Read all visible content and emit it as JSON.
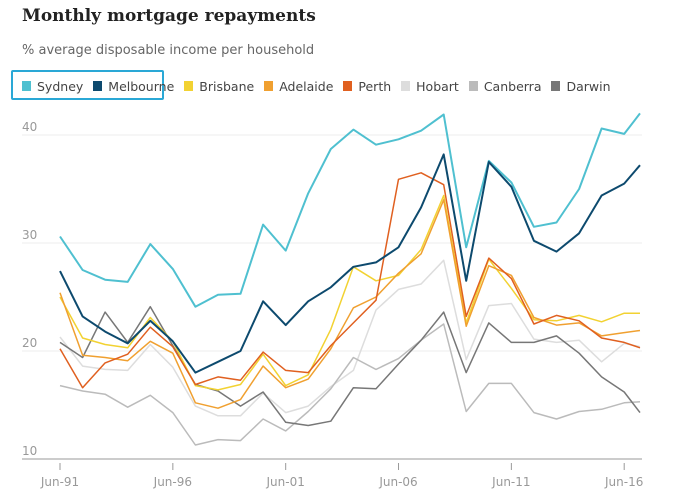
{
  "chart_data": {
    "type": "line",
    "title": "Monthly mortgage repayments",
    "subtitle": "% average disposable income per household",
    "ylim": [
      10,
      43
    ],
    "y_ticks": [
      10,
      20,
      30,
      40
    ],
    "x_ticks": [
      "Jun-91",
      "Jun-96",
      "Jun-01",
      "Jun-06",
      "Jun-11",
      "Jun-16"
    ],
    "x_range": [
      1991.5,
      2017.2
    ],
    "highlighted_series": [
      "Sydney",
      "Melbourne"
    ],
    "grid": true,
    "legend_position": "top",
    "x": [
      1991.5,
      1992.5,
      1993.5,
      1994.5,
      1995.5,
      1996.5,
      1997.5,
      1998.5,
      1999.5,
      2000.5,
      2001.5,
      2002.5,
      2003.5,
      2004.5,
      2005.5,
      2006.5,
      2007.5,
      2008.5,
      2009.5,
      2010.5,
      2011.5,
      2012.5,
      2013.5,
      2014.5,
      2015.5,
      2016.5,
      2017.2
    ],
    "series": [
      {
        "name": "Sydney",
        "color": "#4fc0d0",
        "width": 2,
        "values": [
          30.6,
          27.5,
          26.6,
          26.4,
          29.9,
          27.6,
          24.1,
          25.2,
          25.3,
          31.7,
          29.3,
          34.6,
          38.7,
          40.5,
          39.1,
          39.6,
          40.4,
          41.9,
          29.6,
          37.6,
          35.6,
          31.5,
          31.9,
          35.0,
          40.6,
          40.1,
          42.0
        ]
      },
      {
        "name": "Melbourne",
        "color": "#0d4a6e",
        "width": 2,
        "values": [
          27.4,
          23.2,
          21.8,
          20.7,
          22.8,
          20.9,
          18.0,
          19.0,
          20.0,
          24.6,
          22.4,
          24.6,
          25.9,
          27.8,
          28.2,
          29.6,
          33.3,
          38.2,
          26.5,
          37.5,
          35.2,
          30.2,
          29.2,
          30.9,
          34.4,
          35.5,
          37.2
        ]
      },
      {
        "name": "Brisbane",
        "color": "#f2d232",
        "width": 1.5,
        "values": [
          25.0,
          21.2,
          20.6,
          20.3,
          23.1,
          20.9,
          16.8,
          16.4,
          16.9,
          19.7,
          16.8,
          17.8,
          22.0,
          27.8,
          26.5,
          27.0,
          29.4,
          34.4,
          22.6,
          28.5,
          25.8,
          22.9,
          22.8,
          23.3,
          22.7,
          23.5,
          23.5
        ]
      },
      {
        "name": "Adelaide",
        "color": "#f0a030",
        "width": 1.5,
        "values": [
          25.4,
          19.6,
          19.4,
          19.1,
          20.9,
          19.8,
          15.2,
          14.7,
          15.5,
          18.6,
          16.6,
          17.4,
          20.2,
          24.0,
          25.0,
          27.2,
          29.0,
          34.0,
          22.3,
          27.9,
          27.0,
          23.1,
          22.4,
          22.6,
          21.4,
          21.7,
          21.9
        ]
      },
      {
        "name": "Perth",
        "color": "#e06020",
        "width": 1.5,
        "values": [
          20.2,
          16.6,
          18.9,
          19.7,
          22.2,
          20.4,
          16.9,
          17.6,
          17.3,
          19.9,
          18.2,
          18.0,
          20.5,
          22.6,
          24.7,
          35.9,
          36.5,
          35.4,
          23.2,
          28.6,
          26.7,
          22.5,
          23.3,
          22.8,
          21.2,
          20.8,
          20.3
        ]
      },
      {
        "name": "Hobart",
        "color": "#dddddd",
        "width": 1.5,
        "values": [
          21.3,
          18.6,
          18.3,
          18.2,
          20.6,
          18.5,
          14.9,
          14.0,
          14.0,
          16.1,
          14.3,
          14.9,
          16.7,
          18.2,
          23.8,
          25.7,
          26.2,
          28.4,
          19.2,
          24.2,
          24.4,
          21.1,
          20.8,
          21.0,
          19.0,
          20.7,
          20.4
        ]
      },
      {
        "name": "Canberra",
        "color": "#bbbbbb",
        "width": 1.5,
        "values": [
          16.8,
          16.3,
          16.0,
          14.8,
          15.9,
          14.3,
          11.3,
          11.8,
          11.7,
          13.7,
          12.6,
          14.4,
          16.5,
          19.4,
          18.3,
          19.3,
          21.0,
          22.5,
          14.4,
          17.0,
          17.0,
          14.3,
          13.7,
          14.4,
          14.6,
          15.2,
          15.3
        ]
      },
      {
        "name": "Darwin",
        "color": "#777777",
        "width": 1.5,
        "values": [
          20.8,
          19.4,
          23.6,
          20.8,
          24.1,
          20.5,
          16.9,
          16.3,
          14.9,
          16.2,
          13.4,
          13.1,
          13.5,
          16.6,
          16.5,
          18.8,
          21.0,
          23.6,
          18.0,
          22.6,
          20.8,
          20.8,
          21.4,
          19.8,
          17.6,
          16.2,
          14.3
        ]
      }
    ]
  }
}
